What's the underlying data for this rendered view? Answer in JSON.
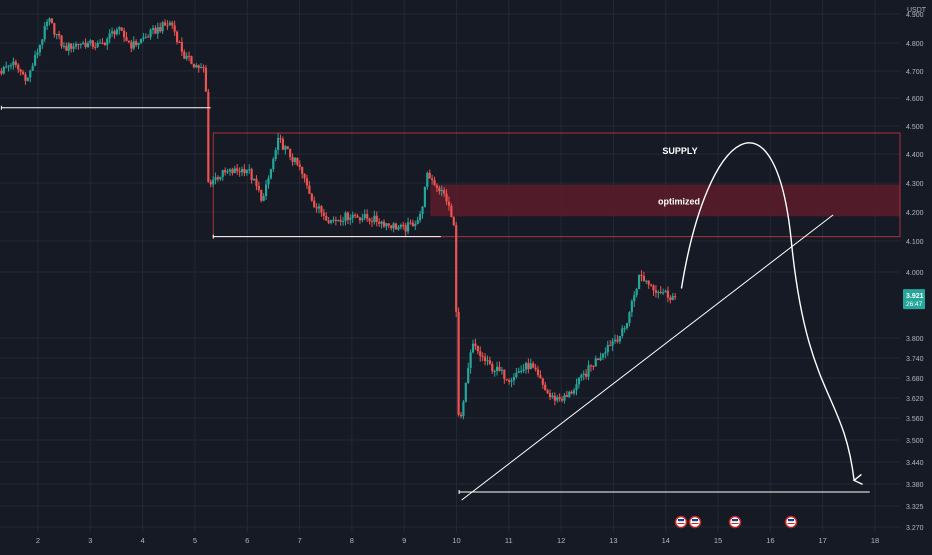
{
  "currency": "USDT",
  "colors": {
    "background": "#161a25",
    "grid": "#232838",
    "up": "#26a69a",
    "down": "#ef5350",
    "axis_text": "#b2b5be",
    "drawing": "#ffffff",
    "supply_line": "#a8333c",
    "zone_fill": "#5c1c2a",
    "price_badge": "#26a69a"
  },
  "current_price": {
    "price": "3.921",
    "countdown": "26:47"
  },
  "zones": {
    "supply": {
      "label": "SUPPLY",
      "top": 4.475,
      "bottom": 4.115
    },
    "optimized": {
      "label": "optimized",
      "top": 4.295,
      "bottom": 4.185
    }
  },
  "economic_event_icons": [
    "us-flag-event-icon",
    "us-flag-event-icon",
    "us-flag-event-icon",
    "us-flag-event-icon"
  ],
  "chart_data": {
    "type": "candlestick",
    "yaxis_ticks": [
      "4.900",
      "4.800",
      "4.700",
      "4.600",
      "4.500",
      "4.400",
      "4.300",
      "4.200",
      "4.100",
      "4.000",
      "3.800",
      "3.740",
      "3.680",
      "3.620",
      "3.560",
      "3.500",
      "3.440",
      "3.380",
      "3.325",
      "3.270"
    ],
    "xaxis_ticks": [
      "2",
      "3",
      "4",
      "5",
      "6",
      "7",
      "8",
      "9",
      "10",
      "11",
      "12",
      "13",
      "14",
      "15",
      "16",
      "17",
      "18"
    ],
    "ylim": [
      3.25,
      4.92
    ],
    "xlim": [
      1.3,
      18.3
    ],
    "candle_path": [
      [
        1.3,
        4.7
      ],
      [
        1.5,
        4.73
      ],
      [
        1.8,
        4.67
      ],
      [
        2.1,
        4.83
      ],
      [
        2.2,
        4.88
      ],
      [
        2.5,
        4.78
      ],
      [
        2.8,
        4.8
      ],
      [
        3.2,
        4.79
      ],
      [
        3.5,
        4.85
      ],
      [
        3.8,
        4.79
      ],
      [
        4.3,
        4.85
      ],
      [
        4.55,
        4.87
      ],
      [
        4.8,
        4.75
      ],
      [
        5.1,
        4.71
      ],
      [
        5.2,
        4.7
      ],
      [
        5.25,
        4.3
      ],
      [
        5.5,
        4.33
      ],
      [
        6.0,
        4.35
      ],
      [
        6.3,
        4.24
      ],
      [
        6.6,
        4.45
      ],
      [
        7.0,
        4.35
      ],
      [
        7.3,
        4.22
      ],
      [
        7.6,
        4.17
      ],
      [
        8.0,
        4.19
      ],
      [
        8.5,
        4.17
      ],
      [
        9.0,
        4.14
      ],
      [
        9.3,
        4.18
      ],
      [
        9.45,
        4.33
      ],
      [
        9.8,
        4.25
      ],
      [
        9.95,
        4.15
      ],
      [
        10.05,
        3.52
      ],
      [
        10.3,
        3.78
      ],
      [
        10.6,
        3.72
      ],
      [
        11.0,
        3.68
      ],
      [
        11.4,
        3.72
      ],
      [
        11.8,
        3.62
      ],
      [
        12.1,
        3.62
      ],
      [
        12.5,
        3.7
      ],
      [
        12.9,
        3.78
      ],
      [
        13.2,
        3.82
      ],
      [
        13.5,
        3.99
      ],
      [
        13.8,
        3.95
      ],
      [
        14.2,
        3.92
      ]
    ],
    "annotations": [
      {
        "type": "hline",
        "y": 4.565,
        "x_start": 1.3,
        "x_end": 5.3
      },
      {
        "type": "hline",
        "y": 4.115,
        "x_start": 5.35,
        "x_end": 9.7
      },
      {
        "type": "hline",
        "y": 3.36,
        "x_start": 10.05,
        "x_end": 17.9
      },
      {
        "type": "trendline",
        "points": [
          [
            10.1,
            3.34
          ],
          [
            17.2,
            4.19
          ]
        ]
      },
      {
        "type": "projection_arrow",
        "points": [
          [
            14.3,
            3.95
          ],
          [
            15.5,
            4.25
          ],
          [
            17.6,
            3.39
          ]
        ]
      }
    ]
  }
}
